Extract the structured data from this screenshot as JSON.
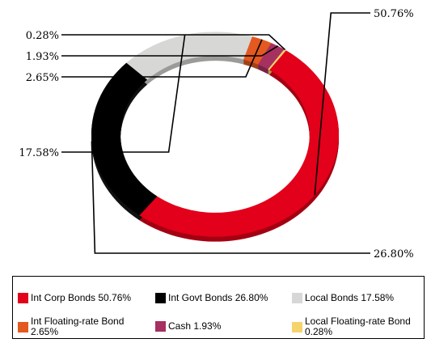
{
  "chart_data": {
    "type": "pie",
    "variant": "donut",
    "slices": [
      {
        "label": "Int Corp Bonds",
        "value": 50.76,
        "value_label": "50.76%",
        "color": "#e2001a"
      },
      {
        "label": "Int Govt Bonds",
        "value": 26.8,
        "value_label": "26.80%",
        "color": "#000000"
      },
      {
        "label": "Local Bonds",
        "value": 17.58,
        "value_label": "17.58%",
        "color": "#d7d7d5"
      },
      {
        "label": "Int Floating-rate Bond",
        "value": 2.65,
        "value_label": "2.65%",
        "color": "#e3591f"
      },
      {
        "label": "Cash",
        "value": 1.93,
        "value_label": "1.93%",
        "color": "#a6305f"
      },
      {
        "label": "Local Floating-rate Bond",
        "value": 0.28,
        "value_label": "0.28%",
        "color": "#f6d36c"
      }
    ],
    "legend_position": "bottom"
  },
  "legend": {
    "items": [
      {
        "text": "Int Corp Bonds 50.76%",
        "color": "#e2001a"
      },
      {
        "text": "Int Govt Bonds 26.80%",
        "color": "#000000"
      },
      {
        "text": "Local Bonds 17.58%",
        "color": "#d7d7d5"
      },
      {
        "text": "Int Floating-rate Bond 2.65%",
        "color": "#e3591f"
      },
      {
        "text": "Cash 1.93%",
        "color": "#a6305f"
      },
      {
        "text": "Local Floating-rate Bond 0.28%",
        "color": "#f6d36c"
      }
    ]
  }
}
